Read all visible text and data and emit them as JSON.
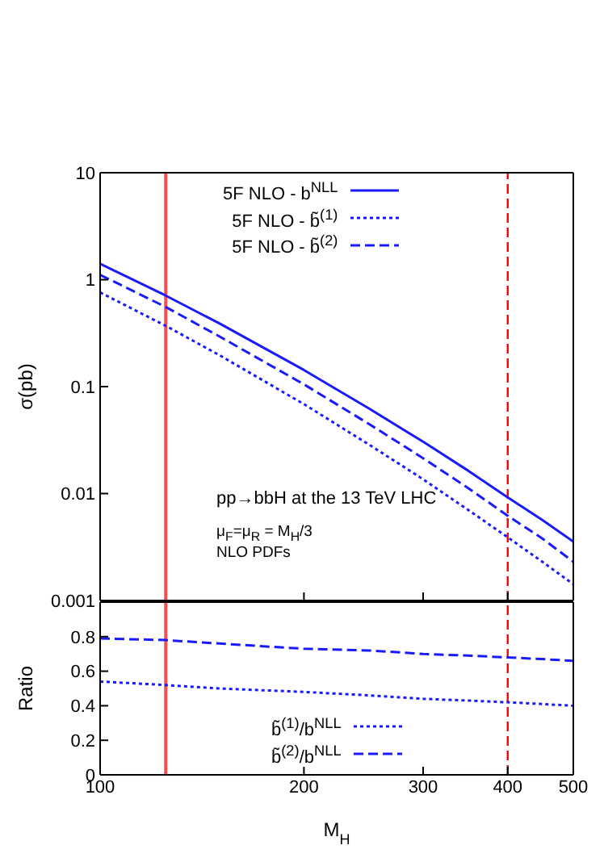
{
  "chart_data": [
    {
      "type": "line",
      "x": [
        100,
        125,
        150,
        200,
        250,
        300,
        350,
        400,
        450,
        500
      ],
      "ylabel": "σ(pb)",
      "log": "xy",
      "xlim": [
        100,
        500
      ],
      "xticks": [
        {
          "value": 100,
          "label": null
        },
        {
          "value": 200,
          "label": null
        },
        {
          "value": 300,
          "label": null
        },
        {
          "value": 400,
          "label": null
        },
        {
          "value": 500,
          "label": null
        }
      ],
      "ylim": [
        0.001,
        10
      ],
      "yticks": [
        0.001,
        0.01,
        0.1,
        1,
        10
      ],
      "tick_labels": "y",
      "legend": "top",
      "grid": false,
      "series": [
        {
          "name": "5F NLO - b$^{NLL}$",
          "color": "#1a1aff",
          "line_style": "solid",
          "values": [
            1.41,
            0.71,
            0.39,
            0.143,
            0.062,
            0.0305,
            0.0163,
            0.0092,
            0.00565,
            0.00355
          ]
        },
        {
          "name": "5F NLO - b̃$^{(1)}$",
          "color": "#1a1aff",
          "line_style": "dotted",
          "values": [
            0.76,
            0.37,
            0.197,
            0.0686,
            0.0285,
            0.0136,
            0.007,
            0.0039,
            0.0023,
            0.00142
          ]
        },
        {
          "name": "5F NLO - b̃$^{(2)}$",
          "color": "#1a1aff",
          "line_style": "dashed",
          "values": [
            1.11,
            0.555,
            0.295,
            0.105,
            0.0444,
            0.0214,
            0.0112,
            0.0062,
            0.0038,
            0.0023
          ]
        }
      ],
      "ref_lines": [
        {
          "axis": "x",
          "value": 125,
          "color": "#ff4d4d",
          "line_style": "solid"
        },
        {
          "axis": "x",
          "value": 400,
          "color": "#ff0000",
          "line_style": "dashed"
        }
      ],
      "annotations": [
        "pp→bbH at the 13 TeV LHC",
        "μ$_{F}$=μ$_{R}$ = M$_{H}$/3",
        "NLO PDFs"
      ]
    },
    {
      "type": "line",
      "x": [
        100,
        125,
        150,
        200,
        250,
        300,
        350,
        400,
        450,
        500
      ],
      "xlabel": "M$_{H}$",
      "ylabel": "Ratio",
      "log": "x",
      "xlim": [
        100,
        500
      ],
      "xticks": [
        100,
        200,
        300,
        400,
        500
      ],
      "ylim": [
        0,
        1
      ],
      "yticks": [
        0,
        0.2,
        0.4,
        0.6,
        0.8
      ],
      "legend": "bottom",
      "grid": false,
      "series": [
        {
          "name": "b̃$^{(1)}$/b$^{NLL}$",
          "color": "#1a1aff",
          "line_style": "dotted",
          "values": [
            0.54,
            0.52,
            0.5,
            0.48,
            0.46,
            0.44,
            0.43,
            0.42,
            0.41,
            0.4
          ]
        },
        {
          "name": "b̃$^{(2)}$/b$^{NLL}$",
          "color": "#1a1aff",
          "line_style": "dashed",
          "values": [
            0.79,
            0.78,
            0.76,
            0.73,
            0.72,
            0.7,
            0.69,
            0.68,
            0.67,
            0.66
          ]
        }
      ],
      "ref_lines": [
        {
          "axis": "x",
          "value": 125,
          "color": "#ff4d4d",
          "line_style": "solid"
        },
        {
          "axis": "x",
          "value": 400,
          "color": "#ff0000",
          "line_style": "dashed"
        }
      ]
    }
  ]
}
